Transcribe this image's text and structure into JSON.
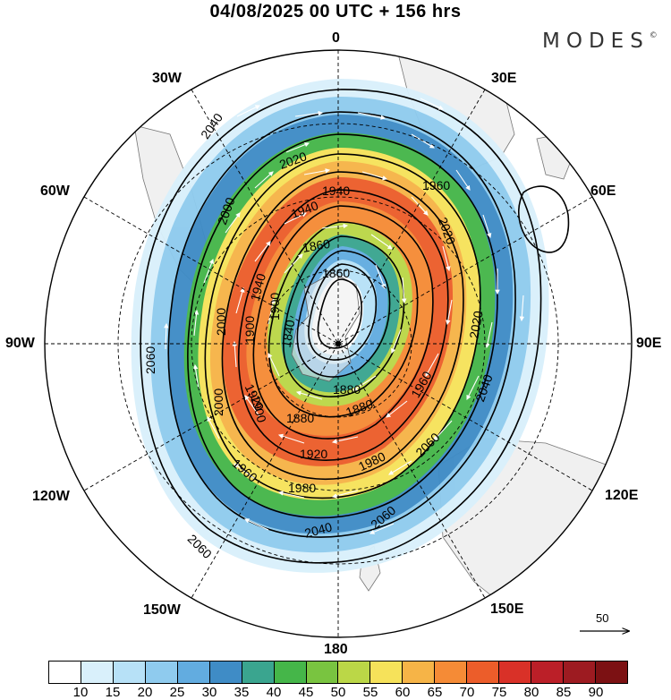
{
  "title": "04/08/2025  00 UTC  + 156 hrs",
  "brand": {
    "name": "MODES",
    "mark": "©"
  },
  "longitude_labels": [
    {
      "id": "0",
      "text": "0"
    },
    {
      "id": "30e",
      "text": "30E"
    },
    {
      "id": "60e",
      "text": "60E"
    },
    {
      "id": "90e",
      "text": "90E"
    },
    {
      "id": "120e",
      "text": "120E"
    },
    {
      "id": "150e",
      "text": "150E"
    },
    {
      "id": "180",
      "text": "180"
    },
    {
      "id": "150w",
      "text": "150W"
    },
    {
      "id": "120w",
      "text": "120W"
    },
    {
      "id": "90w",
      "text": "90W"
    },
    {
      "id": "60w",
      "text": "60W"
    },
    {
      "id": "30w",
      "text": "30W"
    }
  ],
  "contour_labels": [
    "2060",
    "2060",
    "2040",
    "2060",
    "2020",
    "2000",
    "1980",
    "1960",
    "1940",
    "1920",
    "1900",
    "1880",
    "1860",
    "1840",
    "2000",
    "1980",
    "1960",
    "1940",
    "1920",
    "1900",
    "1880",
    "2020",
    "2040",
    "2060",
    "2000",
    "1960",
    "1900",
    "1880",
    "1860",
    "2020",
    "1940",
    "2040"
  ],
  "reference_vector": {
    "label": "50"
  },
  "colorbar": {
    "ticks": [
      "10",
      "15",
      "20",
      "25",
      "30",
      "35",
      "40",
      "45",
      "50",
      "55",
      "60",
      "65",
      "70",
      "75",
      "80",
      "85",
      "90"
    ],
    "colors": [
      "#ffffff",
      "#d9f0fb",
      "#b7e1f7",
      "#8fcbee",
      "#62ace0",
      "#3f8cc6",
      "#3aa58f",
      "#45b649",
      "#79c440",
      "#bbd747",
      "#f6e25a",
      "#f6b447",
      "#f58b36",
      "#ec5d2a",
      "#d93128",
      "#bb1f28",
      "#9d1b21",
      "#7c1113"
    ]
  }
}
